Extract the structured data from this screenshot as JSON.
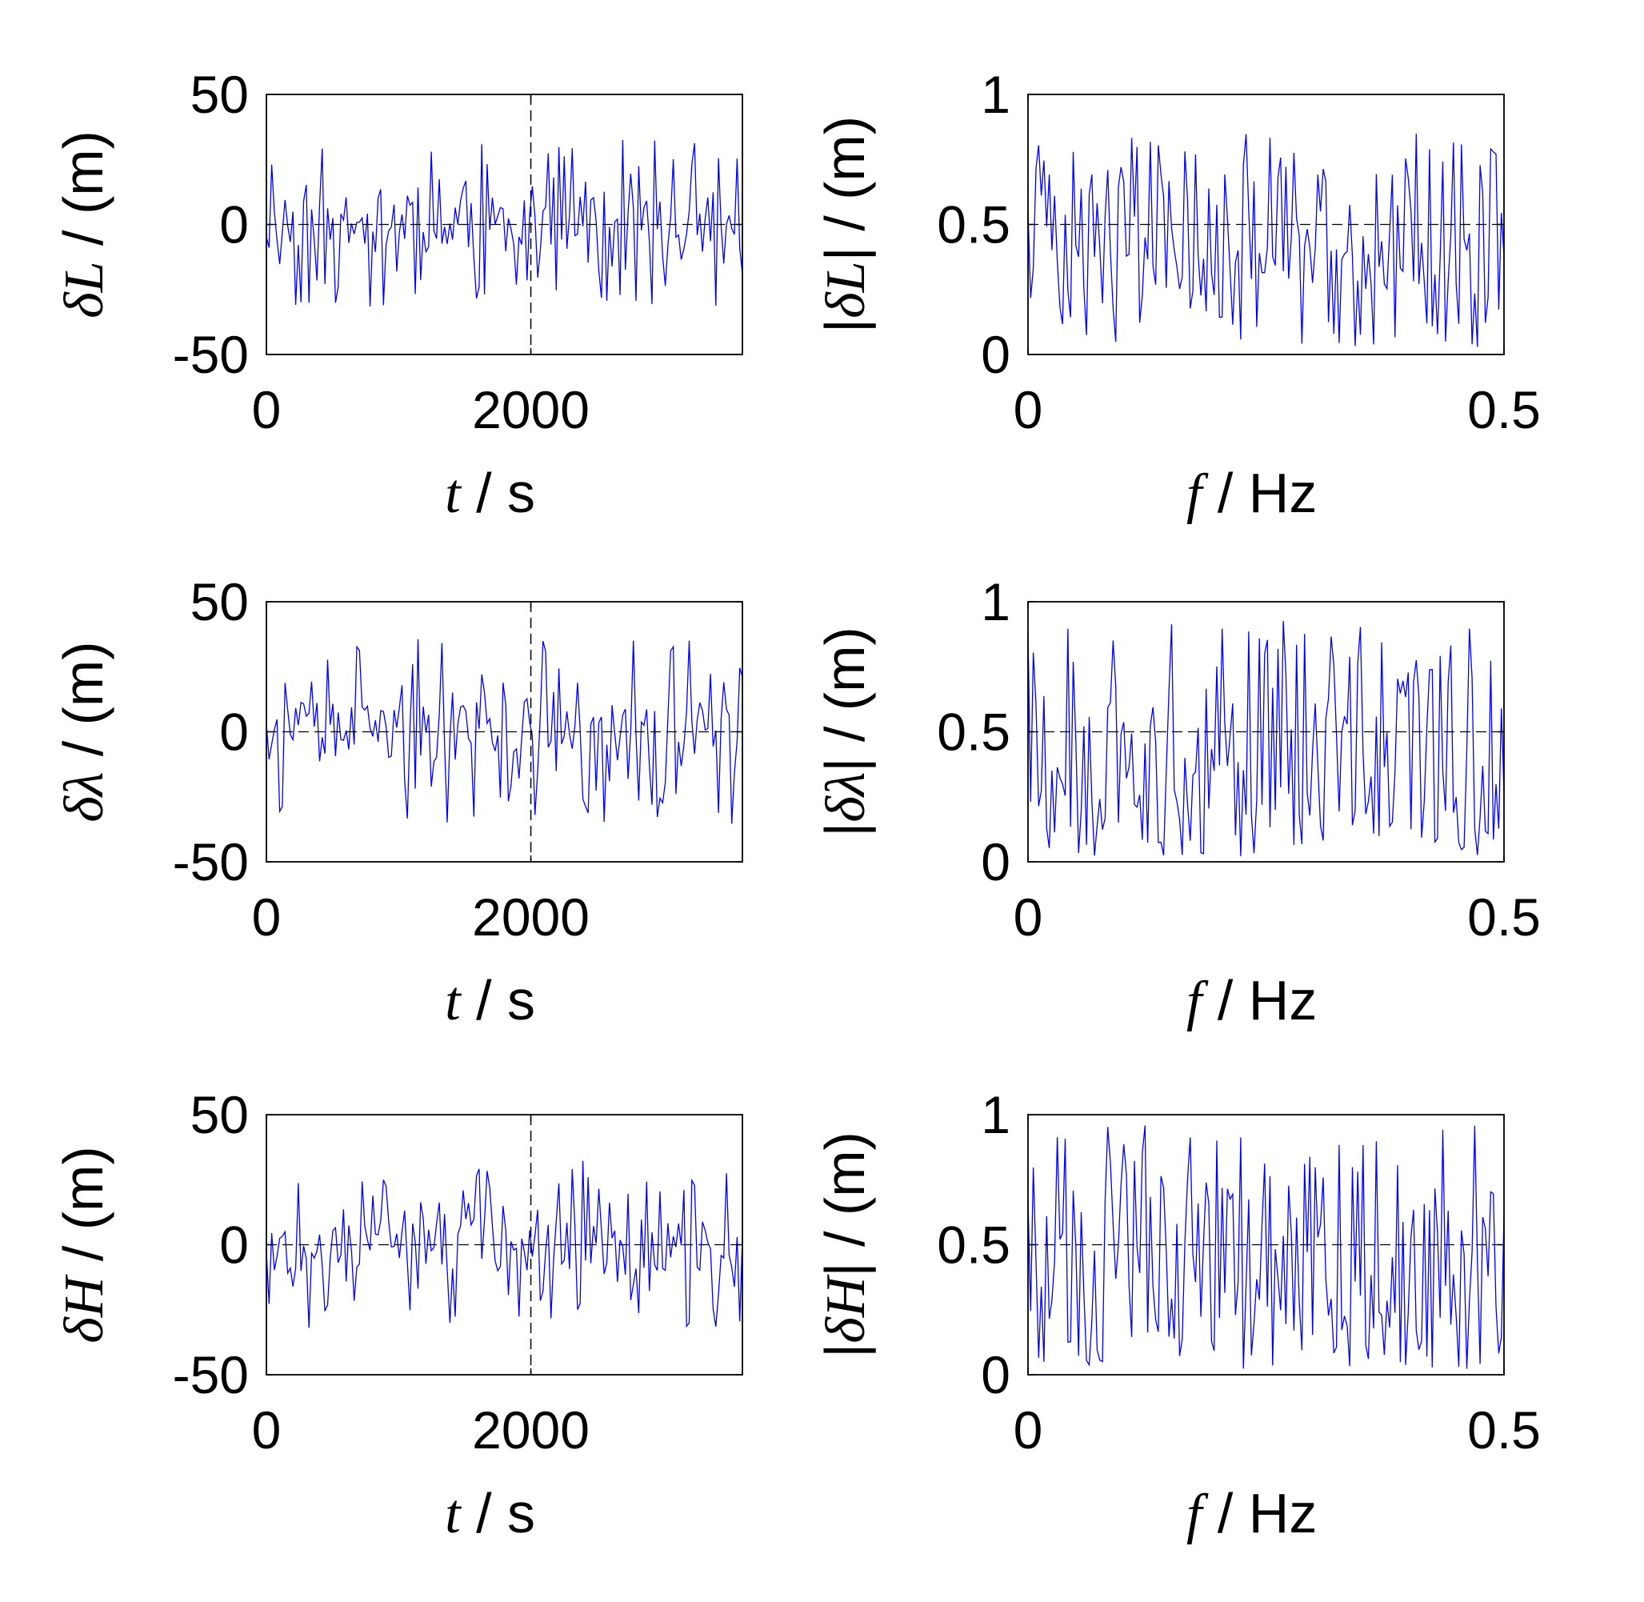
{
  "figure": {
    "trace_color": "#0000ff",
    "refline_color": "#000000",
    "axes_color": "#000000",
    "background": "#ffffff"
  },
  "chart_data": [
    {
      "type": "line",
      "row": 0,
      "col": 0,
      "xlabel": {
        "sym": "t",
        "unit": " / s"
      },
      "ylabel": {
        "pre": "",
        "sym": "δL",
        "post": " / (m)"
      },
      "xlim": [
        0,
        3600
      ],
      "ylim": [
        -50,
        50
      ],
      "xticks": [
        0,
        2000
      ],
      "yticks": [
        -50,
        0,
        50
      ],
      "xtick_labels": [
        "0",
        "2000"
      ],
      "ytick_labels": [
        "-50",
        "0",
        "50"
      ],
      "hline": 0,
      "vline": 2000,
      "noise": {
        "seed": 11,
        "n": 180,
        "max": 35,
        "mean": 0
      }
    },
    {
      "type": "line",
      "row": 0,
      "col": 1,
      "xlabel": {
        "sym": "f",
        "unit": " / Hz"
      },
      "ylabel": {
        "pre": "|",
        "sym": "δL",
        "post": "| / (m)"
      },
      "xlim": [
        0,
        0.5
      ],
      "ylim": [
        0,
        1
      ],
      "xticks": [
        0,
        0.5
      ],
      "yticks": [
        0,
        0.5,
        1
      ],
      "xtick_labels": [
        "0",
        "0.5"
      ],
      "ytick_labels": [
        "0",
        "0.5",
        "1"
      ],
      "hline": 0.5,
      "noise": {
        "seed": 23,
        "n": 180,
        "max": 0.85,
        "mean": 0.3
      }
    },
    {
      "type": "line",
      "row": 1,
      "col": 0,
      "xlabel": {
        "sym": "t",
        "unit": " / s"
      },
      "ylabel": {
        "pre": "",
        "sym": "δλ",
        "post": " / (m)"
      },
      "xlim": [
        0,
        3600
      ],
      "ylim": [
        -50,
        50
      ],
      "xticks": [
        0,
        2000
      ],
      "yticks": [
        -50,
        0,
        50
      ],
      "xtick_labels": [
        "0",
        "2000"
      ],
      "ytick_labels": [
        "-50",
        "0",
        "50"
      ],
      "hline": 0,
      "vline": 2000,
      "noise": {
        "seed": 37,
        "n": 180,
        "max": 38,
        "mean": 0
      }
    },
    {
      "type": "line",
      "row": 1,
      "col": 1,
      "xlabel": {
        "sym": "f",
        "unit": " / Hz"
      },
      "ylabel": {
        "pre": "|",
        "sym": "δλ",
        "post": "| / (m)"
      },
      "xlim": [
        0,
        0.5
      ],
      "ylim": [
        0,
        1
      ],
      "xticks": [
        0,
        0.5
      ],
      "yticks": [
        0,
        0.5,
        1
      ],
      "xtick_labels": [
        "0",
        "0.5"
      ],
      "ytick_labels": [
        "0",
        "0.5",
        "1"
      ],
      "hline": 0.5,
      "noise": {
        "seed": 51,
        "n": 180,
        "max": 0.93,
        "mean": 0.3
      }
    },
    {
      "type": "line",
      "row": 2,
      "col": 0,
      "xlabel": {
        "sym": "t",
        "unit": " / s"
      },
      "ylabel": {
        "pre": "",
        "sym": "δH",
        "post": " / (m)"
      },
      "xlim": [
        0,
        3600
      ],
      "ylim": [
        -50,
        50
      ],
      "xticks": [
        0,
        2000
      ],
      "yticks": [
        -50,
        0,
        50
      ],
      "xtick_labels": [
        "0",
        "2000"
      ],
      "ytick_labels": [
        "-50",
        "0",
        "50"
      ],
      "hline": 0,
      "vline": 2000,
      "noise": {
        "seed": 67,
        "n": 180,
        "max": 34,
        "mean": 0
      }
    },
    {
      "type": "line",
      "row": 2,
      "col": 1,
      "xlabel": {
        "sym": "f",
        "unit": " / Hz"
      },
      "ylabel": {
        "pre": "|",
        "sym": "δH",
        "post": "| / (m)"
      },
      "xlim": [
        0,
        0.5
      ],
      "ylim": [
        0,
        1
      ],
      "xticks": [
        0,
        0.5
      ],
      "yticks": [
        0,
        0.5,
        1
      ],
      "xtick_labels": [
        "0",
        "0.5"
      ],
      "ytick_labels": [
        "0",
        "0.5",
        "1"
      ],
      "hline": 0.5,
      "noise": {
        "seed": 79,
        "n": 180,
        "max": 0.96,
        "mean": 0.3
      }
    }
  ]
}
